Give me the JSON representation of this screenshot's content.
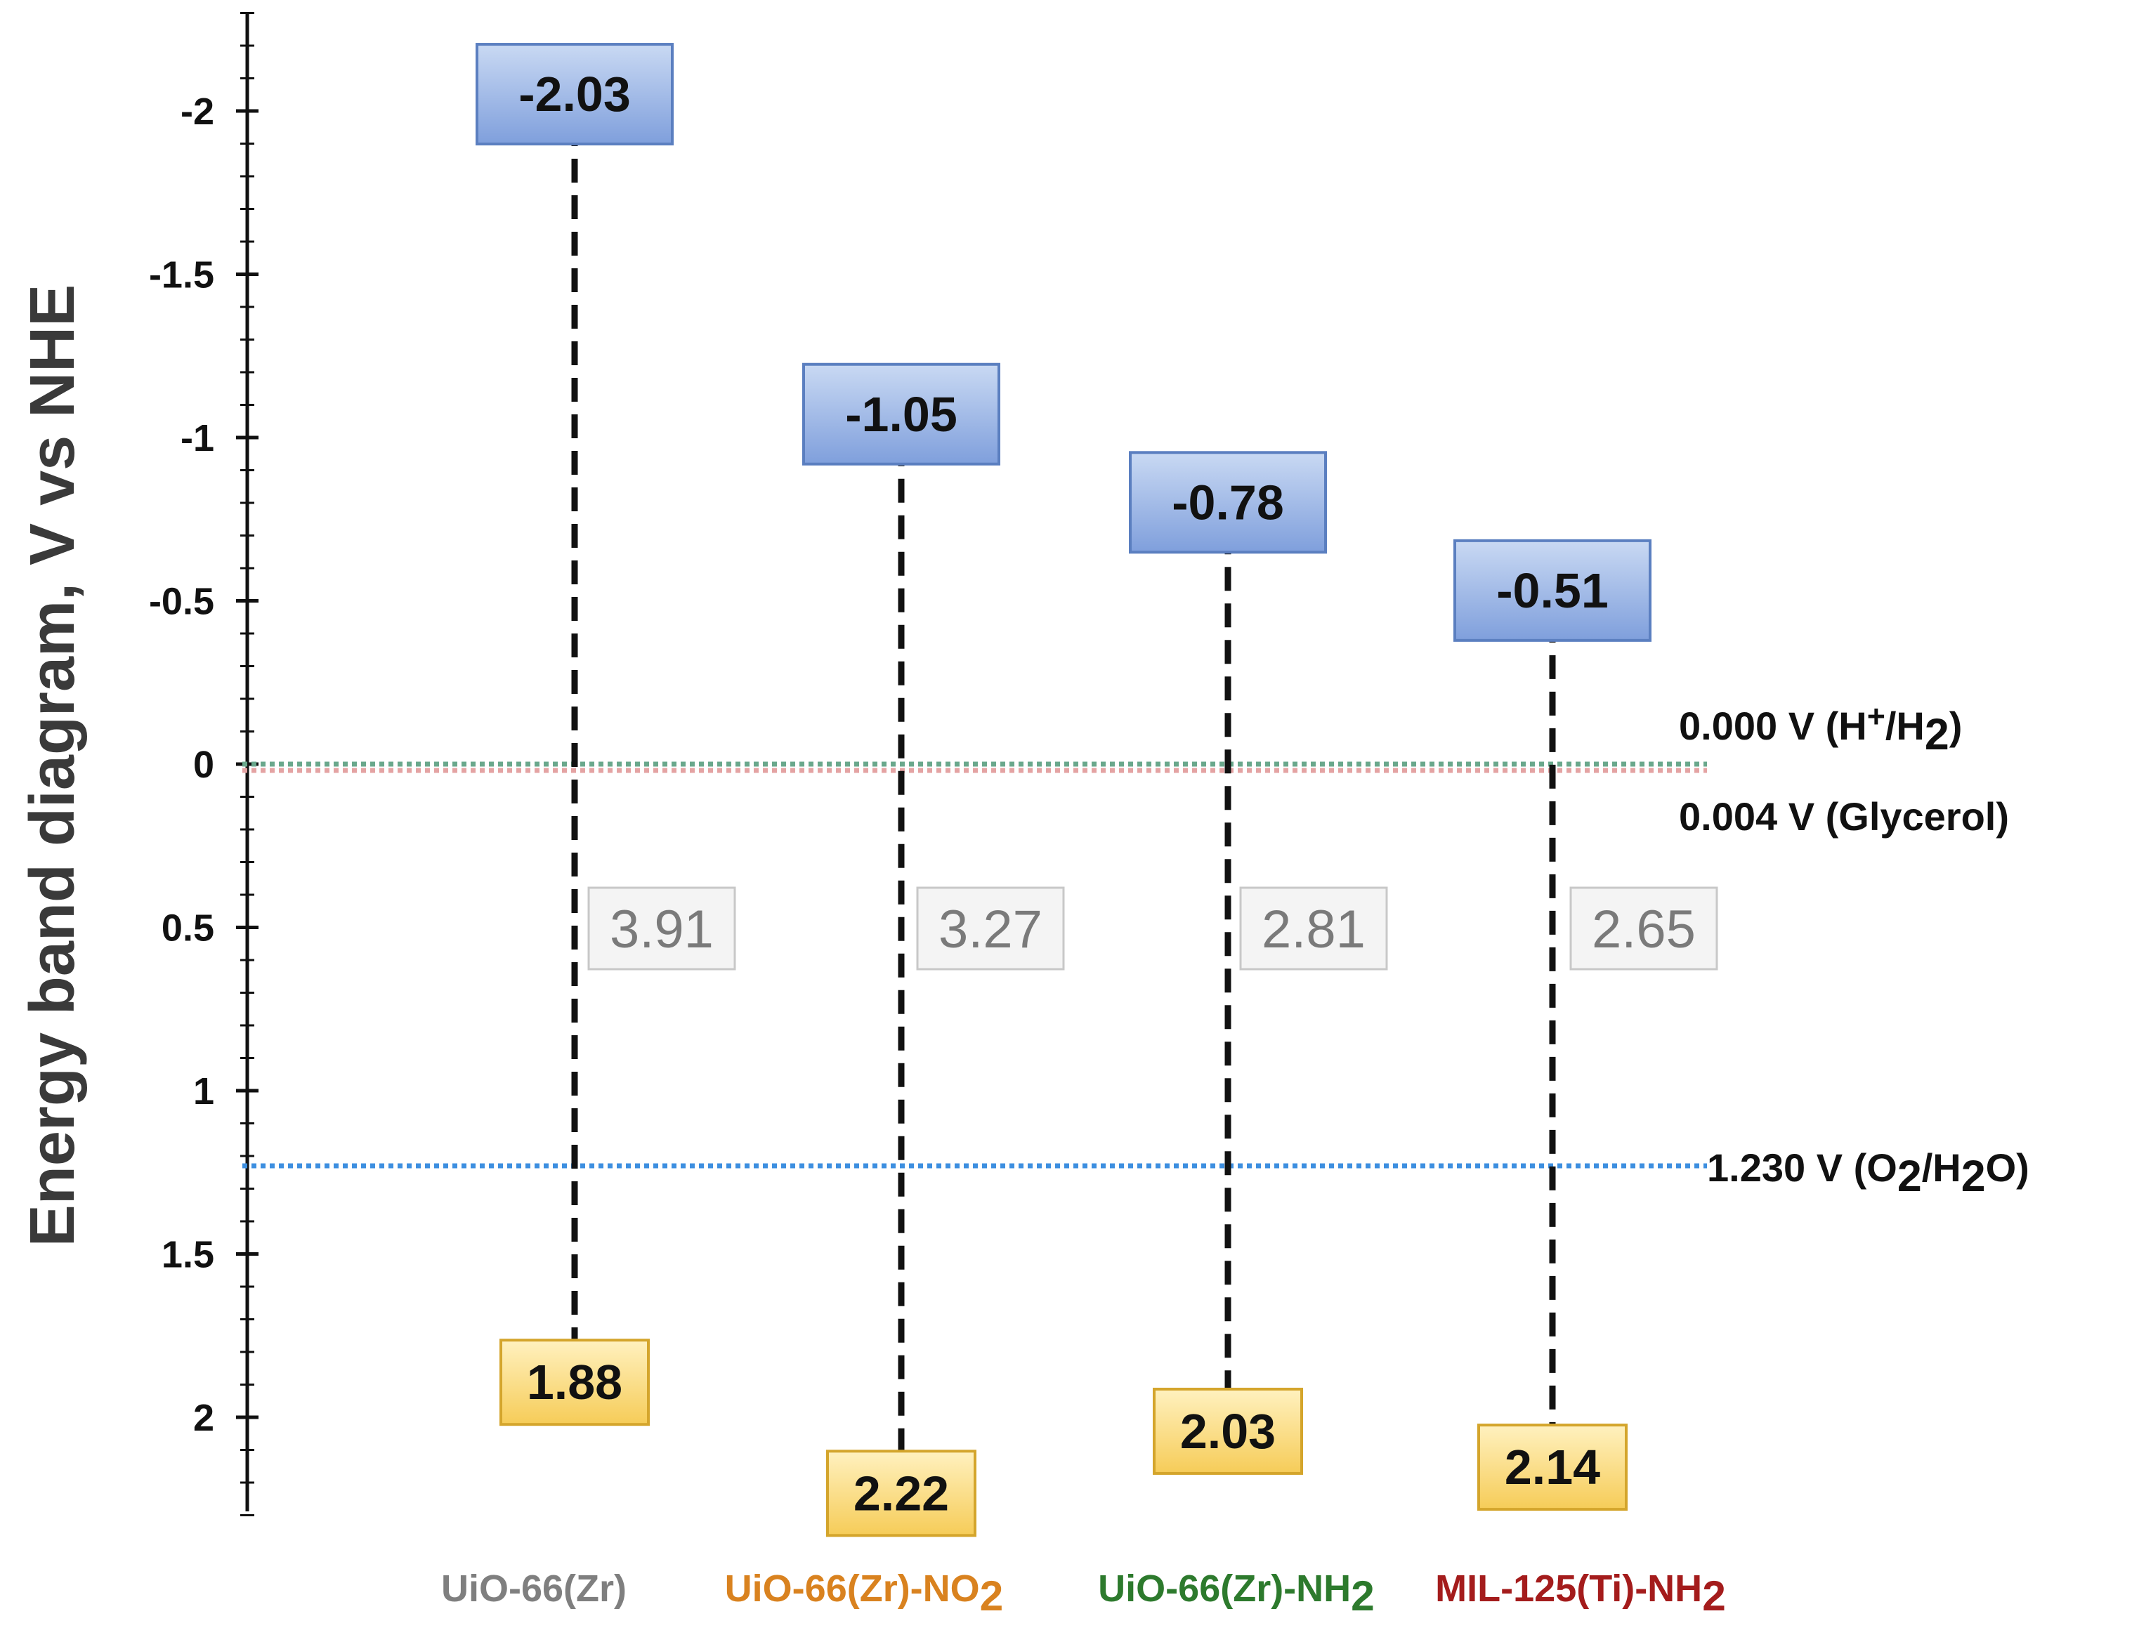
{
  "chart_data": {
    "type": "energy-band-diagram",
    "ylabel": "Energy band diagram, V vs NHE",
    "ylim": [
      2.3,
      -2.3
    ],
    "y_ticks": [
      -2,
      -1.5,
      -1,
      -0.5,
      0,
      0.5,
      1,
      1.5,
      2
    ],
    "y_tick_labels": [
      "-2",
      "-1.5",
      "-1",
      "-0.5",
      "0",
      "0.5",
      "1",
      "1.5",
      "2"
    ],
    "materials": [
      {
        "name": "UiO-66(Zr)",
        "name_parts": [
          {
            "t": "UiO-66(Zr)"
          }
        ],
        "color": "#7f7f7f",
        "cb": -2.03,
        "cb_label": "-2.03",
        "vb": 1.88,
        "vb_label": "1.88",
        "gap": 3.91,
        "gap_label": "3.91"
      },
      {
        "name": "UiO-66(Zr)-NO2",
        "name_parts": [
          {
            "t": "UiO-66(Zr)-NO"
          },
          {
            "t": "2",
            "sub": true
          }
        ],
        "color": "#d9821f",
        "cb": -1.05,
        "cb_label": "-1.05",
        "vb": 2.22,
        "vb_label": "2.22",
        "gap": 3.27,
        "gap_label": "3.27"
      },
      {
        "name": "UiO-66(Zr)-NH2",
        "name_parts": [
          {
            "t": "UiO-66(Zr)-NH"
          },
          {
            "t": "2",
            "sub": true
          }
        ],
        "color": "#2d7a2d",
        "cb": -0.78,
        "cb_label": "-0.78",
        "vb": 2.03,
        "vb_label": "2.03",
        "gap": 2.81,
        "gap_label": "2.81"
      },
      {
        "name": "MIL-125(Ti)-NH2",
        "name_parts": [
          {
            "t": "MIL-125(Ti)-NH"
          },
          {
            "t": "2",
            "sub": true
          }
        ],
        "color": "#a41c1c",
        "cb": -0.51,
        "cb_label": "-0.51",
        "vb": 2.14,
        "vb_label": "2.14",
        "gap": 2.65,
        "gap_label": "2.65"
      }
    ],
    "reference_levels": [
      {
        "value": 0.0,
        "label": "0.000 V (H+/H2)",
        "label_parts": [
          {
            "t": "0.000 V (H"
          },
          {
            "t": "+",
            "sup": true
          },
          {
            "t": "/H"
          },
          {
            "t": "2",
            "sub": true
          },
          {
            "t": ")"
          }
        ],
        "color": "#6aa88c",
        "label_side": "above"
      },
      {
        "value": 0.004,
        "label": "0.004 V (Glycerol)",
        "label_parts": [
          {
            "t": "0.004 V (Glycerol)"
          }
        ],
        "color": "#e4a3a3",
        "label_side": "below"
      },
      {
        "value": 1.23,
        "label": "1.230 V (O2/H2O)",
        "label_parts": [
          {
            "t": "1.230 V (O"
          },
          {
            "t": "2",
            "sub": true
          },
          {
            "t": "/H"
          },
          {
            "t": "2",
            "sub": true
          },
          {
            "t": "O)"
          }
        ],
        "color": "#3d8fe0",
        "label_side": "right"
      }
    ],
    "colors": {
      "cb_box_top": "#c9d9f3",
      "cb_box_bottom": "#7f9fdc",
      "cb_box_stroke": "#5b7fc0",
      "vb_box_top": "#fff1bf",
      "vb_box_bottom": "#f6cc58",
      "vb_box_stroke": "#d4a52c",
      "gap_box_fill": "#f4f4f4",
      "gap_box_stroke": "#c8c8c8"
    }
  }
}
